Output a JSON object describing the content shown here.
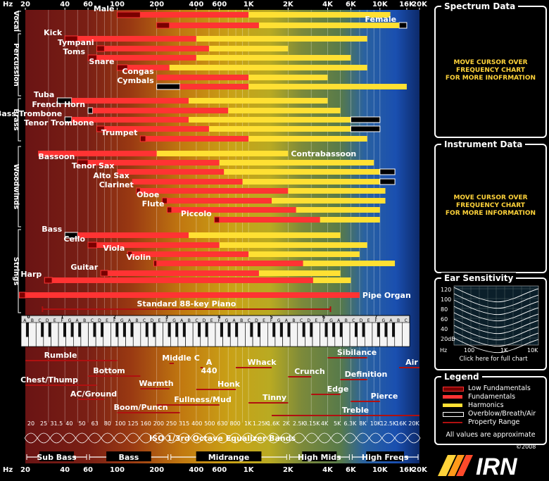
{
  "top_freq_labels": [
    "20",
    "40",
    "60",
    "100",
    "200",
    "400",
    "600",
    "1K",
    "2K",
    "4K",
    "6K",
    "10K",
    "16K",
    "20K"
  ],
  "hz_label": "Hz",
  "groups": [
    "Vocal",
    "Percussion",
    "Brass",
    "Woodwinds",
    "Strings"
  ],
  "instruments": [
    {
      "name": "Male",
      "low_f": [
        100,
        150
      ],
      "fund": [
        150,
        1000
      ],
      "harm": [
        1000,
        12000
      ]
    },
    {
      "name": "Female",
      "low_f": [
        200,
        250
      ],
      "fund": [
        250,
        1200
      ],
      "harm": [
        1200,
        14000
      ],
      "over": [
        14000,
        16000
      ]
    },
    {
      "name": "Kick",
      "low_f": [
        40,
        50
      ],
      "fund": [
        50,
        400
      ],
      "harm": [
        400,
        8000
      ]
    },
    {
      "name": "Tympani",
      "low_f": [
        70,
        80
      ],
      "fund": [
        80,
        500
      ],
      "harm": [
        500,
        2000
      ]
    },
    {
      "name": "Toms",
      "low_f": [
        60,
        70
      ],
      "fund": [
        70,
        400
      ],
      "harm": [
        400,
        6000
      ]
    },
    {
      "name": "Snare",
      "low_f": [
        100,
        120
      ],
      "fund": [
        120,
        250
      ],
      "harm": [
        250,
        8000
      ]
    },
    {
      "name": "Congas",
      "fund": [
        200,
        1000
      ],
      "harm": [
        1000,
        4000
      ]
    },
    {
      "name": "Cymbals",
      "over": [
        200,
        300
      ],
      "fund": [
        300,
        1000
      ],
      "harm": [
        1000,
        16000
      ]
    },
    {
      "name": "Tuba",
      "over": [
        35,
        45
      ],
      "fund": [
        45,
        350
      ],
      "harm": [
        350,
        4000
      ]
    },
    {
      "name": "French Horn",
      "over": [
        60,
        65
      ],
      "fund": [
        65,
        700
      ],
      "harm": [
        700,
        5000
      ]
    },
    {
      "name": "Bass Trombone",
      "over": [
        40,
        45
      ],
      "fund": [
        45,
        350
      ],
      "harm": [
        350,
        6000
      ],
      "over2": [
        6000,
        10000
      ]
    },
    {
      "name": "Tenor Trombone",
      "low_f": [
        70,
        80
      ],
      "fund": [
        80,
        500
      ],
      "harm": [
        500,
        6000
      ],
      "over2": [
        6000,
        10000
      ]
    },
    {
      "name": "Trumpet",
      "low_f": [
        150,
        165
      ],
      "fund": [
        165,
        1000
      ],
      "harm": [
        1000,
        8000
      ]
    },
    {
      "name": "Contrabassoon",
      "fund": [
        25,
        200
      ],
      "harm": [
        200,
        2000
      ]
    },
    {
      "name": "Bassoon",
      "low_f": [
        50,
        60
      ],
      "fund": [
        60,
        600
      ],
      "harm": [
        600,
        9000
      ]
    },
    {
      "name": "Tenor Sax",
      "fund": [
        100,
        650
      ],
      "harm": [
        650,
        10000
      ],
      "over2": [
        10000,
        13000
      ]
    },
    {
      "name": "Alto Sax",
      "fund": [
        130,
        900
      ],
      "harm": [
        900,
        10000
      ],
      "over2": [
        10000,
        13000
      ]
    },
    {
      "name": "Clarinet",
      "low_f": [
        140,
        150
      ],
      "fund": [
        150,
        2000
      ],
      "harm": [
        2000,
        11000
      ]
    },
    {
      "name": "Oboe",
      "low_f": [
        220,
        240
      ],
      "fund": [
        240,
        1500
      ],
      "harm": [
        1500,
        11000
      ]
    },
    {
      "name": "Flute",
      "low_f": [
        240,
        260
      ],
      "fund": [
        260,
        2300
      ],
      "harm": [
        2300,
        10000
      ]
    },
    {
      "name": "Piccolo",
      "low_f": [
        550,
        600
      ],
      "fund": [
        600,
        3500
      ],
      "harm": [
        3500,
        10000
      ]
    },
    {
      "name": "Bass",
      "over": [
        40,
        50
      ],
      "fund": [
        50,
        350
      ],
      "harm": [
        350,
        5000
      ]
    },
    {
      "name": "Cello",
      "low_f": [
        60,
        70
      ],
      "fund": [
        70,
        600
      ],
      "harm": [
        600,
        8000
      ]
    },
    {
      "name": "Viola",
      "low_f": [
        120,
        130
      ],
      "fund": [
        130,
        1000
      ],
      "harm": [
        1000,
        7000
      ]
    },
    {
      "name": "Violin",
      "low_f": [
        190,
        200
      ],
      "fund": [
        200,
        2600
      ],
      "harm": [
        2600,
        13000
      ]
    },
    {
      "name": "Guitar",
      "low_f": [
        75,
        85
      ],
      "fund": [
        85,
        1200
      ],
      "harm": [
        1200,
        5000
      ]
    },
    {
      "name": "Harp",
      "low_f": [
        28,
        32
      ],
      "fund": [
        32,
        3100
      ],
      "harm": [
        3100,
        6000
      ]
    },
    {
      "name": "Pipe Organ",
      "low_f": [
        18,
        20
      ],
      "fund": [
        20,
        7000
      ]
    },
    {
      "name": "Standard 88-key Piano",
      "range": [
        27,
        4200
      ]
    }
  ],
  "octave_numbers": [
    "0",
    "1",
    "2",
    "3",
    "4",
    "5",
    "6",
    "7",
    "8"
  ],
  "note_names": "C D E F G A B",
  "properties": [
    {
      "name": "Rumble",
      "range": [
        20,
        100
      ]
    },
    {
      "name": "Chest/Thump",
      "range": [
        20,
        70
      ]
    },
    {
      "name": "Bottom",
      "range": [
        60,
        150
      ]
    },
    {
      "name": "AC/Ground",
      "range": [
        50,
        80
      ]
    },
    {
      "name": "Warmth",
      "range": [
        150,
        250
      ]
    },
    {
      "name": "Boom/Punch",
      "range": [
        100,
        300
      ]
    },
    {
      "name": "Middle C",
      "range": [
        250,
        270
      ]
    },
    {
      "name": "A 440",
      "range": [
        430,
        450
      ]
    },
    {
      "name": "Honk",
      "range": [
        400,
        800
      ]
    },
    {
      "name": "Fullness/Mud",
      "range": [
        200,
        600
      ]
    },
    {
      "name": "Whack",
      "range": [
        800,
        1500
      ]
    },
    {
      "name": "Tinny",
      "range": [
        1000,
        2000
      ]
    },
    {
      "name": "Crunch",
      "range": [
        2000,
        3000
      ]
    },
    {
      "name": "Edge",
      "range": [
        3000,
        5000
      ]
    },
    {
      "name": "Sibilance",
      "range": [
        4000,
        8000
      ]
    },
    {
      "name": "Definition",
      "range": [
        5000,
        8000
      ]
    },
    {
      "name": "Pierce",
      "range": [
        6000,
        10000
      ]
    },
    {
      "name": "Air",
      "range": [
        14000,
        20000
      ]
    },
    {
      "name": "Treble",
      "range": [
        1500,
        20000
      ]
    }
  ],
  "eq_freqs": [
    "20",
    "25",
    "31.5",
    "40",
    "50",
    "63",
    "80",
    "100",
    "125",
    "160",
    "200",
    "250",
    "315",
    "400",
    "500",
    "630",
    "800",
    "1K",
    "1.25K",
    "1.6K",
    "2K",
    "2.5K",
    "3.15K",
    "4K",
    "5K",
    "6.3K",
    "8K",
    "10K",
    "12.5K",
    "16K",
    "20K"
  ],
  "eq_title": "ISO 1/3rd Octave Equalizer Bands",
  "bands": [
    {
      "name": "Sub Bass",
      "range": [
        20,
        60
      ]
    },
    {
      "name": "Bass",
      "range": [
        60,
        250
      ]
    },
    {
      "name": "Midrange",
      "range": [
        250,
        2000
      ]
    },
    {
      "name": "High Mids",
      "range": [
        2000,
        6000
      ]
    },
    {
      "name": "High Freqs",
      "range": [
        6000,
        20000
      ]
    }
  ],
  "side_panels": {
    "spectrum": {
      "title": "Spectrum Data",
      "msg1": "MOVE CURSOR OVER",
      "msg2": "FREQUENCY CHART",
      "msg3": "FOR MORE INOFRMATION"
    },
    "instrument": {
      "title": "Instrument Data",
      "msg1": "MOVE CURSOR OVER",
      "msg2": "FREQUENCY CHART",
      "msg3": "FOR MORE INFORMATION"
    },
    "ear": {
      "title": "Ear Sensitivity",
      "db_labels": [
        "120",
        "100",
        "80",
        "60",
        "40",
        "20dB"
      ],
      "x_labels": [
        "Hz",
        "100",
        "1K",
        "10K"
      ],
      "link": "Click here for full chart"
    },
    "legend": {
      "title": "Legend",
      "items": [
        {
          "label": "Low Fundamentals",
          "color": "#7a0000"
        },
        {
          "label": "Fundamentals",
          "color": "#ff3333"
        },
        {
          "label": "Harmonics",
          "color": "#ffe033"
        },
        {
          "label": "Overblow/Breath/Air",
          "color": "#000000"
        },
        {
          "label": "Property Range",
          "color": "#b01010"
        }
      ],
      "note": "All values are approximate"
    }
  },
  "logo": "IRN",
  "copyright": "©2008"
}
